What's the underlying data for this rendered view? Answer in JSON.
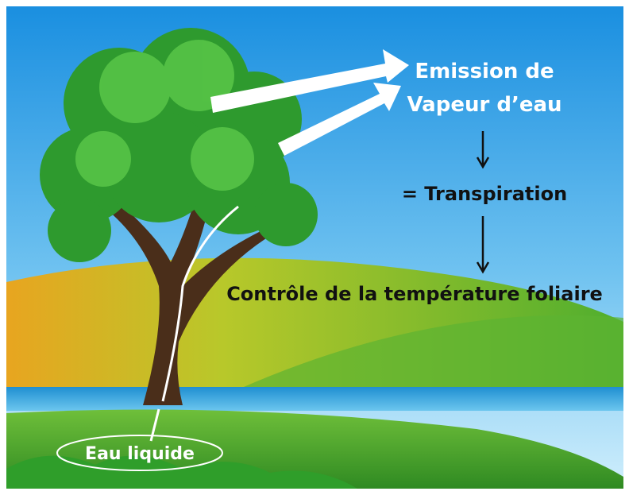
{
  "nodes": [
    {
      "lines": [
        "Emission de",
        "Vapeur d’eau"
      ]
    },
    {
      "label": "= Transpiration"
    },
    {
      "label": "Contrôle de la température foliaire"
    },
    {
      "label": "Eau liquide"
    }
  ]
}
